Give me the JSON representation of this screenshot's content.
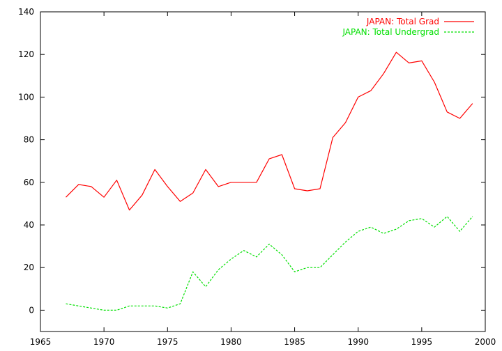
{
  "chart_data": {
    "type": "line",
    "title": "",
    "xlabel": "",
    "ylabel": "",
    "xlim": [
      1965,
      2000
    ],
    "ylim": [
      -10,
      140
    ],
    "xticks": [
      "1965",
      "1970",
      "1975",
      "1980",
      "1985",
      "1990",
      "1995",
      "2000"
    ],
    "yticks": [
      "0",
      "20",
      "40",
      "60",
      "80",
      "100",
      "120",
      "140"
    ],
    "grid": false,
    "legend_position": "top-right",
    "x": [
      1967,
      1968,
      1969,
      1970,
      1971,
      1972,
      1973,
      1974,
      1975,
      1976,
      1977,
      1978,
      1979,
      1980,
      1981,
      1982,
      1983,
      1984,
      1985,
      1986,
      1987,
      1988,
      1989,
      1990,
      1991,
      1992,
      1993,
      1994,
      1995,
      1996,
      1997,
      1998,
      1999
    ],
    "series": [
      {
        "name": "JAPAN: Total Grad",
        "color": "#ff0000",
        "style": "solid",
        "values": [
          53,
          59,
          58,
          53,
          61,
          47,
          54,
          66,
          58,
          51,
          55,
          66,
          58,
          60,
          60,
          60,
          71,
          73,
          57,
          56,
          57,
          81,
          88,
          100,
          103,
          111,
          121,
          116,
          117,
          107,
          93,
          90,
          97
        ]
      },
      {
        "name": "JAPAN: Total Undergrad",
        "color": "#00e000",
        "style": "dashed",
        "values": [
          3,
          2,
          1,
          0,
          0,
          2,
          2,
          2,
          1,
          3,
          18,
          11,
          19,
          24,
          28,
          25,
          31,
          26,
          18,
          20,
          20,
          26,
          32,
          37,
          39,
          36,
          38,
          42,
          43,
          39,
          44,
          37,
          44
        ]
      }
    ]
  }
}
